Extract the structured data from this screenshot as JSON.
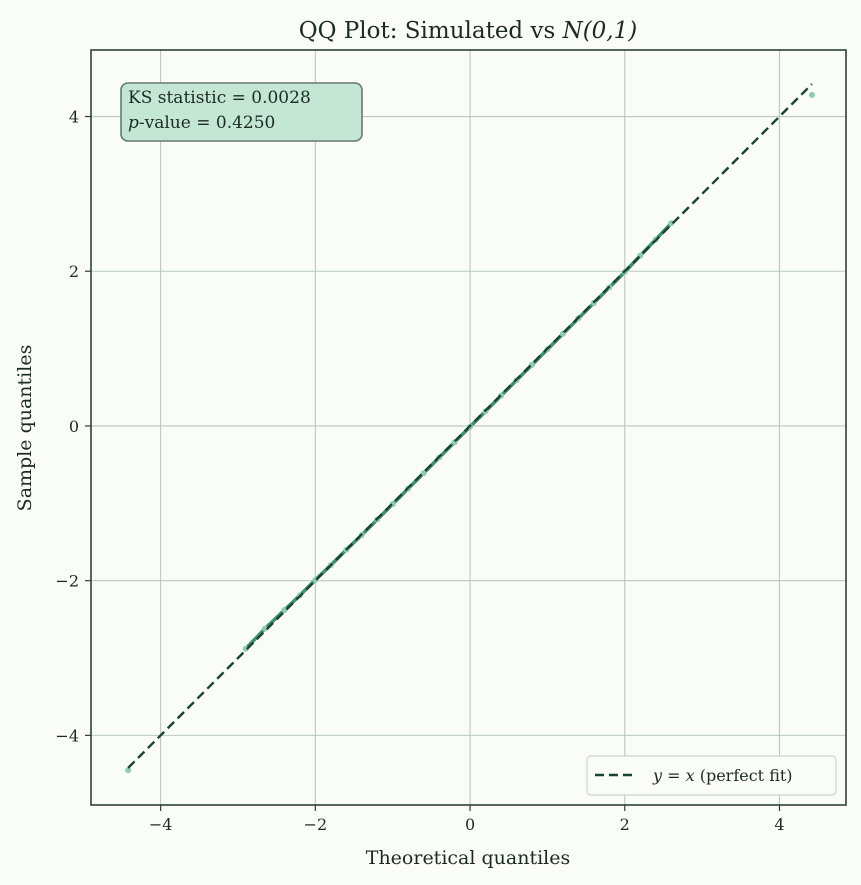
{
  "chart_data": {
    "type": "scatter",
    "title": "QQ Plot: Simulated vs ",
    "title_math": "N(0,1)",
    "xlabel": "Theoretical quantiles",
    "ylabel": "Sample quantiles",
    "xlim": [
      -4.9,
      4.86
    ],
    "ylim": [
      -4.9,
      4.86
    ],
    "xticks": [
      -4,
      -2,
      0,
      2,
      4
    ],
    "yticks": [
      -4,
      -2,
      0,
      2,
      4
    ],
    "xtick_labels": [
      "−4",
      "−2",
      "0",
      "2",
      "4"
    ],
    "ytick_labels": [
      "−4",
      "−2",
      "0",
      "2",
      "4"
    ],
    "grid": true,
    "points": {
      "x": [
        -4.42,
        -2.9,
        -2.65,
        -2.4,
        -2.2,
        -2.0,
        -1.8,
        -1.6,
        -1.4,
        -1.2,
        -1.0,
        -0.8,
        -0.6,
        -0.4,
        -0.2,
        0.0,
        0.2,
        0.4,
        0.6,
        0.8,
        1.0,
        1.2,
        1.4,
        1.6,
        1.8,
        2.0,
        2.2,
        2.4,
        2.6,
        4.42
      ],
      "y": [
        -4.45,
        -2.88,
        -2.62,
        -2.38,
        -2.19,
        -1.99,
        -1.8,
        -1.6,
        -1.41,
        -1.21,
        -1.01,
        -0.81,
        -0.61,
        -0.41,
        -0.21,
        -0.01,
        0.19,
        0.39,
        0.59,
        0.79,
        0.99,
        1.19,
        1.39,
        1.59,
        1.79,
        1.99,
        2.2,
        2.41,
        2.62,
        4.28
      ],
      "color": "#8fcbb0"
    },
    "reference_line": {
      "name": "y = x (perfect fit)",
      "name_math": "y = x",
      "name_text": " (perfect fit)",
      "from": -4.42,
      "to": 4.42,
      "style": "dashed",
      "color": "#1b4332"
    },
    "legend": {
      "placement": "bottom-right"
    },
    "annotation": {
      "line1": "KS statistic = 0.0028",
      "line2_math": "p",
      "line2_text": "-value = 0.4250",
      "box_color": "#c4e6d4"
    }
  }
}
